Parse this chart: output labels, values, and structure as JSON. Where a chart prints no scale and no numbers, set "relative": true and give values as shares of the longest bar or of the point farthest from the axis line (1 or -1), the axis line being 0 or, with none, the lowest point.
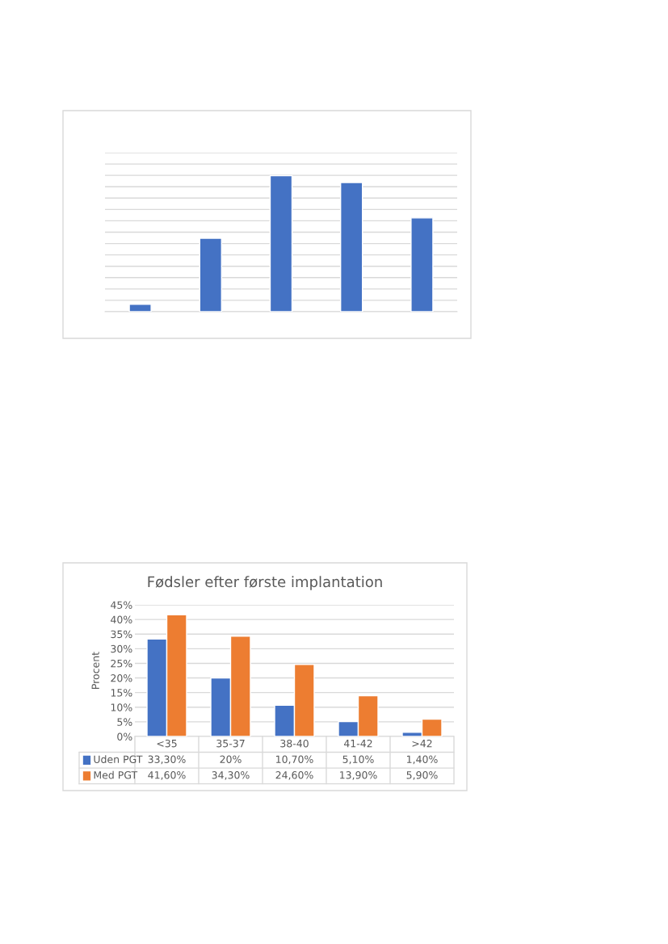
{
  "chart_data": [
    {
      "type": "bar",
      "relative": true,
      "grid": true,
      "color": "#4472c4",
      "categories": [
        null,
        null,
        null,
        null,
        null
      ],
      "values": [
        0.055,
        0.54,
        1,
        0.95,
        0.69
      ]
    },
    {
      "type": "bar",
      "title": "Fødsler efter første implantation",
      "ylabel": "Procent",
      "categories": [
        "<35",
        "35-37",
        "38-40",
        "41-42",
        ">42"
      ],
      "series": [
        {
          "name": "Uden PGT",
          "color": "#4472c4",
          "values": [
            33.3,
            20,
            10.7,
            5.1,
            1.4
          ],
          "value_labels": [
            "33,30%",
            "20%",
            "10,70%",
            "5,10%",
            "1,40%"
          ]
        },
        {
          "name": "Med PGT",
          "color": "#ed7d31",
          "values": [
            41.6,
            34.3,
            24.6,
            13.9,
            5.9
          ],
          "value_labels": [
            "41,60%",
            "34,30%",
            "24,60%",
            "13,90%",
            "5,90%"
          ]
        }
      ],
      "ylim": [
        0,
        45
      ],
      "yticks": [
        {
          "value": 0,
          "label": "0%"
        },
        {
          "value": 5,
          "label": "5%"
        },
        {
          "value": 10,
          "label": "10%"
        },
        {
          "value": 15,
          "label": "15%"
        },
        {
          "value": 20,
          "label": "20%"
        },
        {
          "value": 25,
          "label": "25%"
        },
        {
          "value": 30,
          "label": "30%"
        },
        {
          "value": 35,
          "label": "35%"
        },
        {
          "value": 40,
          "label": "40%"
        },
        {
          "value": 45,
          "label": "45%"
        }
      ],
      "grid": "y",
      "legend": "bottom"
    }
  ]
}
